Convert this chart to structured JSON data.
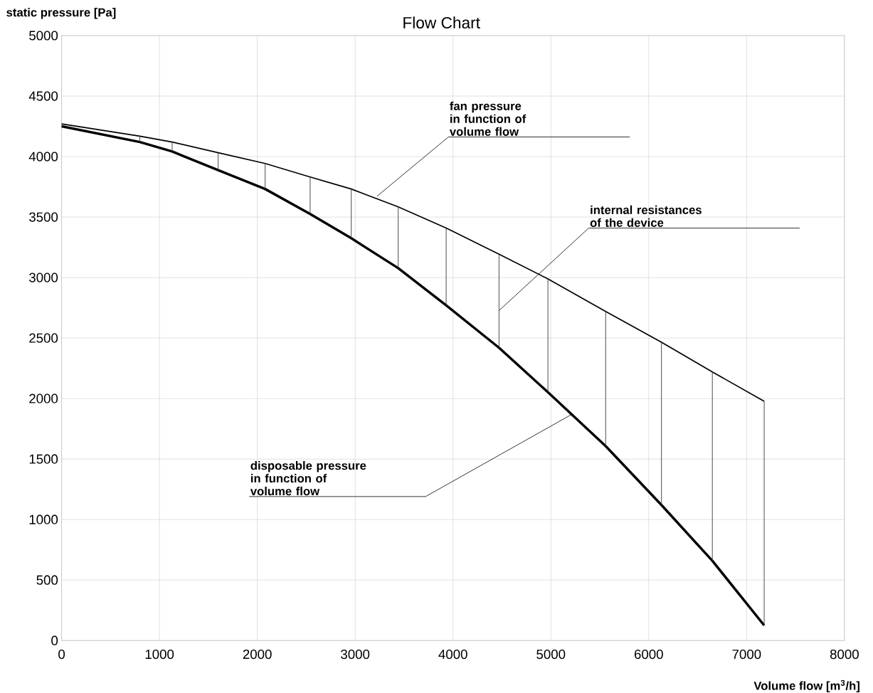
{
  "chart_data": {
    "type": "line",
    "title": "Flow Chart",
    "xlabel": "Volume flow  [m$^{3}$/h]",
    "ylabel": "static pressure  [Pa]",
    "x": [
      0,
      800,
      1130,
      1600,
      2080,
      2540,
      2960,
      3440,
      3930,
      4470,
      4970,
      5560,
      6130,
      6650,
      7180
    ],
    "series": [
      {
        "color": "#000000",
        "values": [
          4270,
          4169,
          4120,
          4032,
          3943,
          3831,
          3732,
          3584,
          3409,
          3193,
          2989,
          2720,
          2466,
          2220,
          1977
        ]
      },
      {
        "color": "#000000",
        "values": [
          4250,
          4120,
          4042,
          3888,
          3732,
          3525,
          3325,
          3078,
          2770,
          2420,
          2052,
          1607,
          1120,
          659,
          125
        ],
        "errors": [
          null,
          [
            4120,
            4169
          ],
          [
            4042,
            4120
          ],
          [
            3888,
            4032
          ],
          [
            3732,
            3943
          ],
          [
            3525,
            3831
          ],
          [
            3325,
            3732
          ],
          [
            3078,
            3584
          ],
          [
            2770,
            3409
          ],
          [
            2420,
            3193
          ],
          [
            2052,
            2989
          ],
          [
            1607,
            2720
          ],
          [
            1120,
            2466
          ],
          [
            659,
            2220
          ],
          [
            125,
            1977
          ]
        ]
      }
    ],
    "xlim": [
      0,
      8000
    ],
    "ylim": [
      0,
      5000
    ],
    "xticks": [
      0,
      1000,
      2000,
      3000,
      4000,
      5000,
      6000,
      7000,
      8000
    ],
    "yticks": [
      0,
      500,
      1000,
      1500,
      2000,
      2500,
      3000,
      3500,
      4000,
      4500,
      5000
    ],
    "grid": true,
    "annotations": [
      {
        "text": "fan pressure in function of volume flow",
        "x": 3225,
        "y": 3673
      },
      {
        "text": "internal resistances of the device",
        "x": 4470,
        "y": 2727
      },
      {
        "text": "disposable pressure in function of volume flow",
        "x": 5213,
        "y": 1869
      }
    ]
  }
}
